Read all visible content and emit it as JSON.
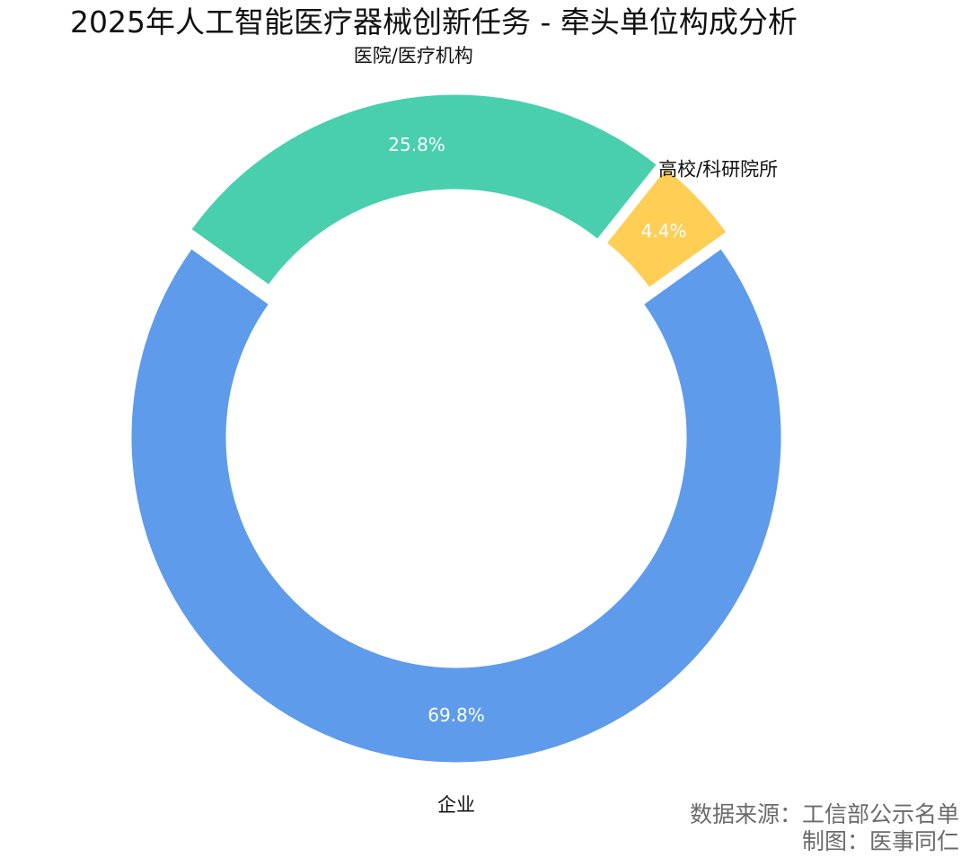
{
  "title": "2025年人工智能医疗器械创新任务 - 牵头单位构成分析",
  "footer": {
    "source": "数据来源：工信部公示名单",
    "credit": "制图：医事同仁"
  },
  "colors": {
    "企业": "#5E9BEB",
    "医院/医疗机构": "#49CFAE",
    "高校/科研院所": "#FECE55"
  },
  "chart_data": {
    "type": "pie",
    "donut": true,
    "categories": [
      "企业",
      "医院/医疗机构",
      "高校/科研院所"
    ],
    "values": [
      69.8,
      25.8,
      4.4
    ],
    "value_labels": [
      "69.8%",
      "25.8%",
      "4.4%"
    ],
    "exploded": true
  }
}
